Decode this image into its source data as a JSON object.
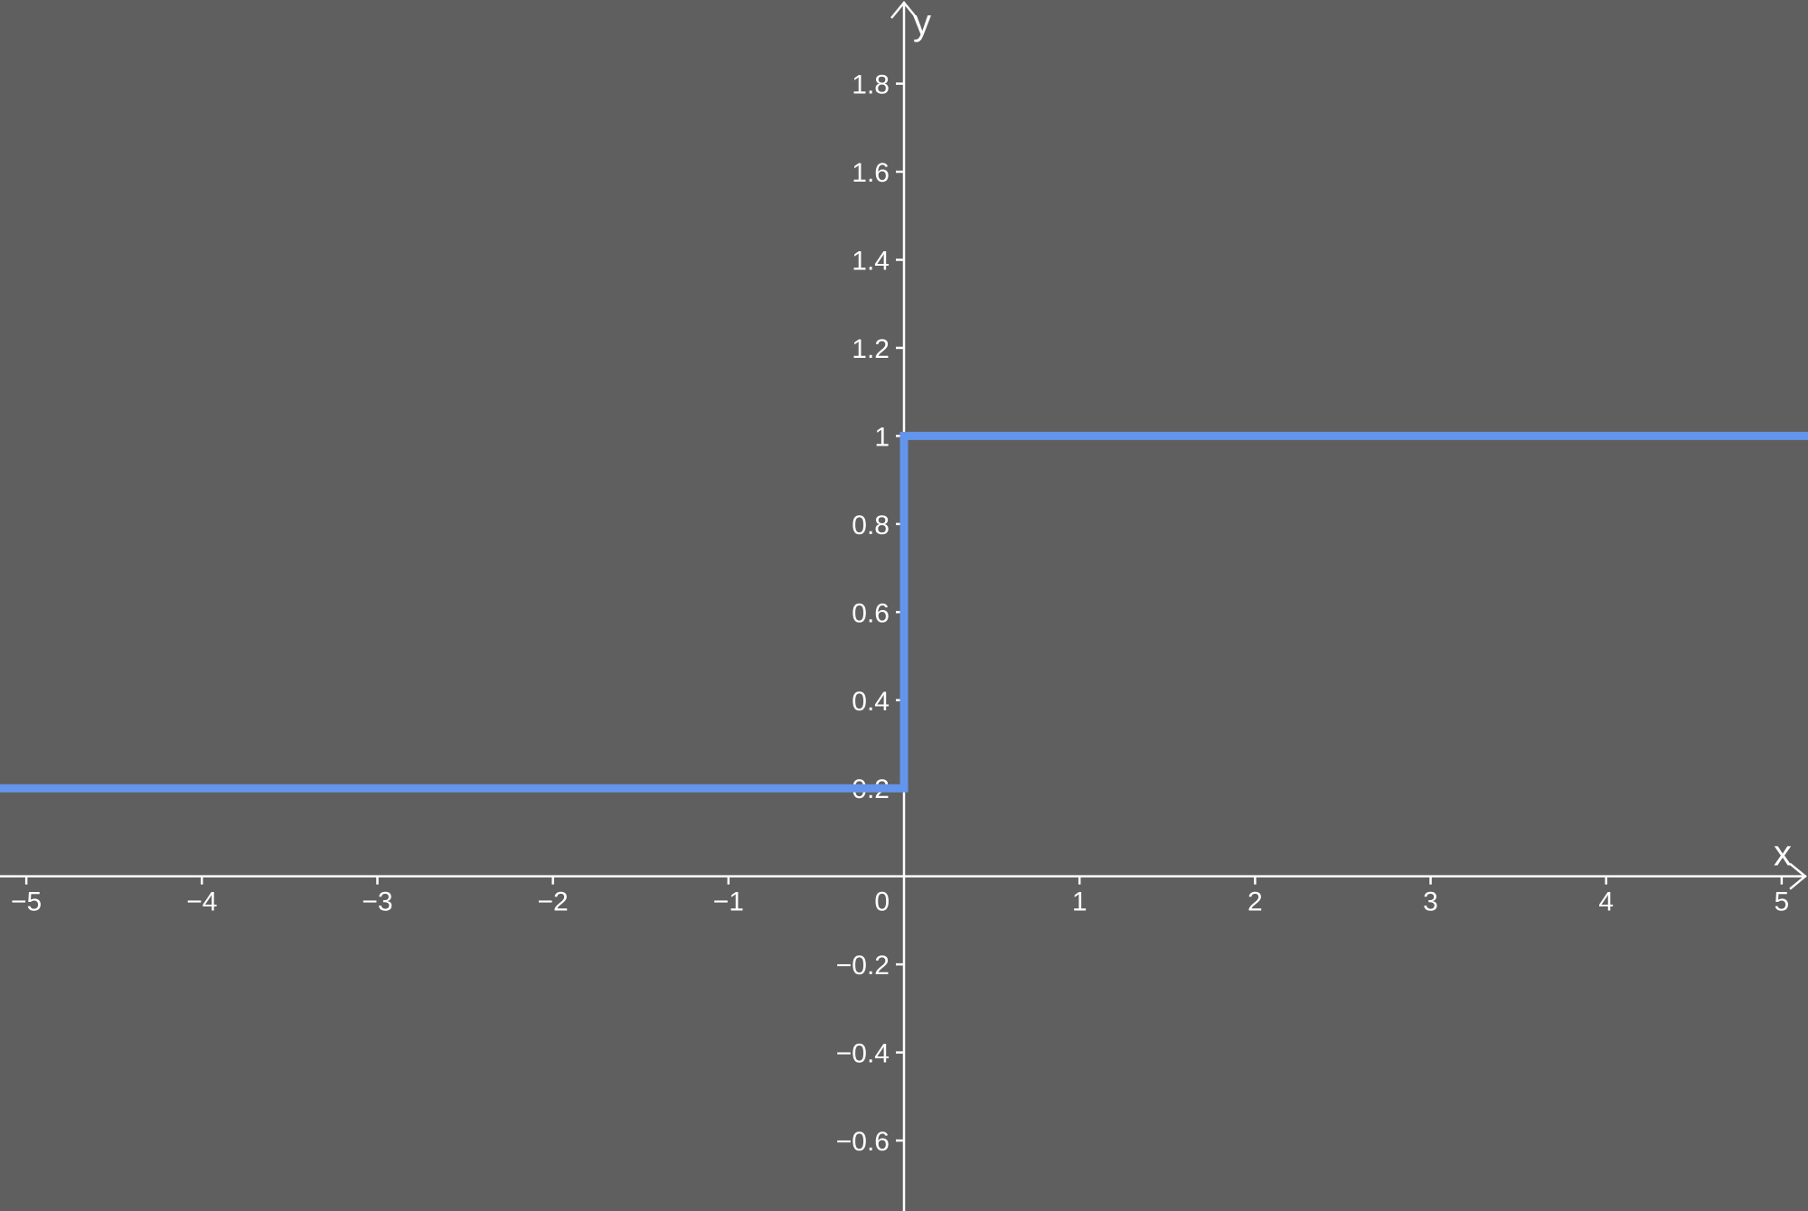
{
  "chart_data": {
    "type": "line",
    "title": "",
    "xlabel": "x",
    "ylabel": "y",
    "xlim": [
      -5.15,
      5.15
    ],
    "ylim": [
      -0.76,
      1.99
    ],
    "grid": false,
    "x_ticks": [
      {
        "value": -5,
        "label": "−5"
      },
      {
        "value": -4,
        "label": "−4"
      },
      {
        "value": -3,
        "label": "−3"
      },
      {
        "value": -2,
        "label": "−2"
      },
      {
        "value": -1,
        "label": "−1"
      },
      {
        "value": 0,
        "label": "0"
      },
      {
        "value": 1,
        "label": "1"
      },
      {
        "value": 2,
        "label": "2"
      },
      {
        "value": 3,
        "label": "3"
      },
      {
        "value": 4,
        "label": "4"
      },
      {
        "value": 5,
        "label": "5"
      }
    ],
    "y_ticks": [
      {
        "value": -0.6,
        "label": "−0.6"
      },
      {
        "value": -0.4,
        "label": "−0.4"
      },
      {
        "value": -0.2,
        "label": "−0.2"
      },
      {
        "value": 0.2,
        "label": "0.2"
      },
      {
        "value": 0.4,
        "label": "0.4"
      },
      {
        "value": 0.6,
        "label": "0.6"
      },
      {
        "value": 0.8,
        "label": "0.8"
      },
      {
        "value": 1,
        "label": "1"
      },
      {
        "value": 1.2,
        "label": "1.2"
      },
      {
        "value": 1.4,
        "label": "1.4"
      },
      {
        "value": 1.6,
        "label": "1.6"
      },
      {
        "value": 1.8,
        "label": "1.8"
      }
    ],
    "series": [
      {
        "color": "#6495ed",
        "points": [
          [
            -5.15,
            0.2
          ],
          [
            0,
            0.2
          ],
          [
            0,
            1
          ],
          [
            5.15,
            1
          ]
        ]
      }
    ]
  },
  "colors": {
    "background": "#5f5f5f",
    "axis": "#ffffff",
    "series": "#6495ed"
  }
}
